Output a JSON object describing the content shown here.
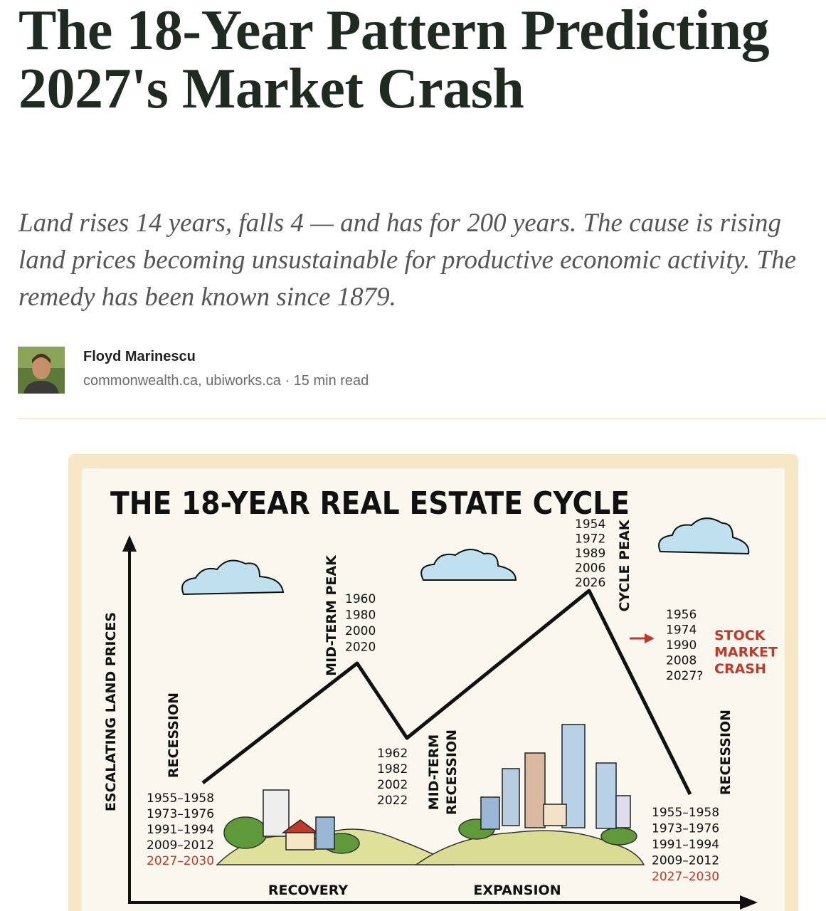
{
  "article": {
    "title": "The 18-Year Pattern Predicting 2027's Market Crash",
    "subtitle": "Land rises 14 years, falls 4 — and has for 200 years. The cause is rising land prices becoming unsustainable for productive economic activity. The remedy has been known since 1879.",
    "author": {
      "name": "Floyd Marinescu",
      "meta": "commonwealth.ca, ubiworks.ca · 15 min read"
    }
  },
  "illustration": {
    "title": "THE 18-YEAR REAL ESTATE CYCLE",
    "y_axis_label": "ESCALATING LAND PRICES",
    "recession_left": "RECESSION",
    "years_left": [
      "1955–1958",
      "1973–1976",
      "1991–1994",
      "2009–2012",
      "2027–2030"
    ],
    "midterm_peak": "MID-TERM PEAK",
    "years_midterm_peak": [
      "1960",
      "1980",
      "2000",
      "2020"
    ],
    "years_midterm_recession": [
      "1962",
      "1982",
      "2002",
      "2022"
    ],
    "midterm_recession": [
      "MID-TERM",
      "RECESSION"
    ],
    "years_cycle_peak": [
      "1954",
      "1972",
      "1989",
      "2006",
      "2026"
    ],
    "cycle_peak": "CYCLE PEAK",
    "years_crash": [
      "1956",
      "1974",
      "1990",
      "2008",
      "2027?"
    ],
    "crash_label": [
      "STOCK",
      "MARKET",
      "CRASH"
    ],
    "recession_right": "RECESSION",
    "years_right": [
      "1955–1958",
      "1973–1976",
      "1991–1994",
      "2009–2012",
      "2027–2030"
    ],
    "recovery": "RECOVERY",
    "expansion": "EXPANSION"
  }
}
